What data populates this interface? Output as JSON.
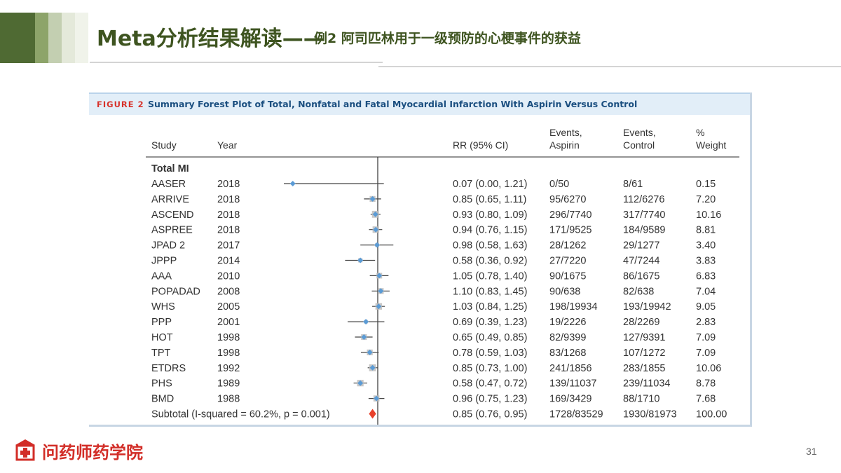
{
  "slide": {
    "title_main": "Meta分析结果解读——",
    "title_sub": "例2 阿司匹林用于一级预防的心梗事件的获益",
    "page_number": "31",
    "logo_text": "问药师药学院",
    "colors": {
      "title": "#3e5420",
      "stripes": [
        "#4f6a33",
        "#8da46a",
        "#c3cfb1",
        "#e4e9da"
      ],
      "figure_header_bg": "#e2eef8",
      "figure_label": "#d7322b",
      "figure_title": "#1b4f80",
      "study_marker": "#5b9bd5",
      "subtotal_marker": "#e8412b",
      "logo": "#d22d27"
    }
  },
  "figure": {
    "label": "FIGURE 2",
    "title": "Summary Forest Plot of Total, Nonfatal and Fatal Myocardial Infarction With Aspirin Versus Control",
    "columns": {
      "study": "Study",
      "year": "Year",
      "rr": "RR (95% CI)",
      "events_aspirin": [
        "Events,",
        "Aspirin"
      ],
      "events_control": [
        "Events,",
        "Control"
      ],
      "weight": [
        "%",
        "Weight"
      ]
    },
    "section_label": "Total MI"
  },
  "chart_data": {
    "type": "forest",
    "title": "Summary Forest Plot of Total, Nonfatal and Fatal Myocardial Infarction With Aspirin Versus Control",
    "xlabel": "",
    "ylabel": "",
    "x_scale": "log",
    "null_line": 1.0,
    "studies": [
      {
        "study": "AASER",
        "year": "2018",
        "rr": 0.07,
        "lo": 0.0,
        "hi": 1.21,
        "rr_text": "0.07 (0.00, 1.21)",
        "events_aspirin": "0/50",
        "events_control": "8/61",
        "weight": "0.15"
      },
      {
        "study": "ARRIVE",
        "year": "2018",
        "rr": 0.85,
        "lo": 0.65,
        "hi": 1.11,
        "rr_text": "0.85 (0.65, 1.11)",
        "events_aspirin": "95/6270",
        "events_control": "112/6276",
        "weight": "7.20"
      },
      {
        "study": "ASCEND",
        "year": "2018",
        "rr": 0.93,
        "lo": 0.8,
        "hi": 1.09,
        "rr_text": "0.93 (0.80, 1.09)",
        "events_aspirin": "296/7740",
        "events_control": "317/7740",
        "weight": "10.16"
      },
      {
        "study": "ASPREE",
        "year": "2018",
        "rr": 0.94,
        "lo": 0.76,
        "hi": 1.15,
        "rr_text": "0.94 (0.76, 1.15)",
        "events_aspirin": "171/9525",
        "events_control": "184/9589",
        "weight": "8.81"
      },
      {
        "study": "JPAD 2",
        "year": "2017",
        "rr": 0.98,
        "lo": 0.58,
        "hi": 1.63,
        "rr_text": "0.98 (0.58, 1.63)",
        "events_aspirin": "28/1262",
        "events_control": "29/1277",
        "weight": "3.40"
      },
      {
        "study": "JPPP",
        "year": "2014",
        "rr": 0.58,
        "lo": 0.36,
        "hi": 0.92,
        "rr_text": "0.58 (0.36, 0.92)",
        "events_aspirin": "27/7220",
        "events_control": "47/7244",
        "weight": "3.83"
      },
      {
        "study": "AAA",
        "year": "2010",
        "rr": 1.05,
        "lo": 0.78,
        "hi": 1.4,
        "rr_text": "1.05 (0.78, 1.40)",
        "events_aspirin": "90/1675",
        "events_control": "86/1675",
        "weight": "6.83"
      },
      {
        "study": "POPADAD",
        "year": "2008",
        "rr": 1.1,
        "lo": 0.83,
        "hi": 1.45,
        "rr_text": "1.10 (0.83, 1.45)",
        "events_aspirin": "90/638",
        "events_control": "82/638",
        "weight": "7.04"
      },
      {
        "study": "WHS",
        "year": "2005",
        "rr": 1.03,
        "lo": 0.84,
        "hi": 1.25,
        "rr_text": "1.03 (0.84, 1.25)",
        "events_aspirin": "198/19934",
        "events_control": "193/19942",
        "weight": "9.05"
      },
      {
        "study": "PPP",
        "year": "2001",
        "rr": 0.69,
        "lo": 0.39,
        "hi": 1.23,
        "rr_text": "0.69 (0.39, 1.23)",
        "events_aspirin": "19/2226",
        "events_control": "28/2269",
        "weight": "2.83"
      },
      {
        "study": "HOT",
        "year": "1998",
        "rr": 0.65,
        "lo": 0.49,
        "hi": 0.85,
        "rr_text": "0.65 (0.49, 0.85)",
        "events_aspirin": "82/9399",
        "events_control": "127/9391",
        "weight": "7.09"
      },
      {
        "study": "TPT",
        "year": "1998",
        "rr": 0.78,
        "lo": 0.59,
        "hi": 1.03,
        "rr_text": "0.78 (0.59, 1.03)",
        "events_aspirin": "83/1268",
        "events_control": "107/1272",
        "weight": "7.09"
      },
      {
        "study": "ETDRS",
        "year": "1992",
        "rr": 0.85,
        "lo": 0.73,
        "hi": 1.0,
        "rr_text": "0.85 (0.73, 1.00)",
        "events_aspirin": "241/1856",
        "events_control": "283/1855",
        "weight": "10.06"
      },
      {
        "study": "PHS",
        "year": "1989",
        "rr": 0.58,
        "lo": 0.47,
        "hi": 0.72,
        "rr_text": "0.58 (0.47, 0.72)",
        "events_aspirin": "139/11037",
        "events_control": "239/11034",
        "weight": "8.78"
      },
      {
        "study": "BMD",
        "year": "1988",
        "rr": 0.96,
        "lo": 0.75,
        "hi": 1.23,
        "rr_text": "0.96 (0.75, 1.23)",
        "events_aspirin": "169/3429",
        "events_control": "88/1710",
        "weight": "7.68"
      }
    ],
    "subtotal": {
      "label": "Subtotal (I-squared = 60.2%, p = 0.001)",
      "rr": 0.85,
      "lo": 0.76,
      "hi": 0.95,
      "rr_text": "0.85 (0.76, 0.95)",
      "events_aspirin": "1728/83529",
      "events_control": "1930/81973",
      "weight": "100.00"
    }
  }
}
